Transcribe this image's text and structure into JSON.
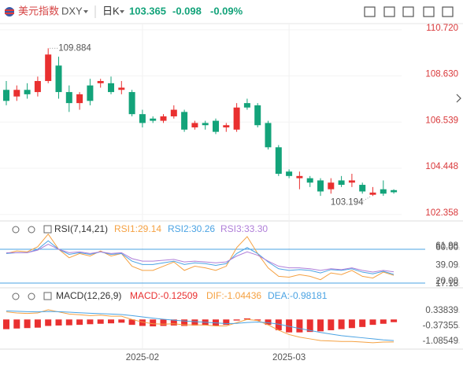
{
  "header": {
    "name": "美元指数",
    "symbol": "DXY",
    "period": "日K",
    "change": "-0.098",
    "change_pct": "-0.09%"
  },
  "chart_data": [
    {
      "type": "candlestick",
      "categories": [
        null,
        null,
        null,
        null,
        null,
        null,
        null,
        null,
        null,
        null,
        null,
        null,
        null,
        "2025-02",
        null,
        null,
        null,
        null,
        null,
        null,
        null,
        null,
        null,
        null,
        null,
        null,
        null,
        "2025-03",
        null,
        null,
        null,
        null,
        null,
        null,
        null,
        null,
        null,
        null
      ],
      "open": [
        108.0,
        107.7,
        108.0,
        107.9,
        108.4,
        109.1,
        107.9,
        107.4,
        108.2,
        108.3,
        108.3,
        108.0,
        107.9,
        106.9,
        106.7,
        106.6,
        106.8,
        107.0,
        106.3,
        106.5,
        106.6,
        106.3,
        106.2,
        107.4,
        107.3,
        106.5,
        105.4,
        104.3,
        104.0,
        104.0,
        103.9,
        103.5,
        103.9,
        103.8,
        103.7,
        103.25,
        103.5,
        103.46
      ],
      "high": [
        108.4,
        108.2,
        108.3,
        108.6,
        109.884,
        109.5,
        108.2,
        107.9,
        108.5,
        108.5,
        108.6,
        108.4,
        108.0,
        107.1,
        106.8,
        106.9,
        107.3,
        107.1,
        106.6,
        106.6,
        106.7,
        106.5,
        107.4,
        107.6,
        107.4,
        106.6,
        105.5,
        104.4,
        104.3,
        104.1,
        104.0,
        104.0,
        104.1,
        104.2,
        103.8,
        103.6,
        103.9,
        103.5
      ],
      "low": [
        107.3,
        107.5,
        107.6,
        107.7,
        108.3,
        107.6,
        107.0,
        107.1,
        107.3,
        108.1,
        107.8,
        107.8,
        106.8,
        106.3,
        106.5,
        106.5,
        106.7,
        106.1,
        106.2,
        106.2,
        106.0,
        106.1,
        106.1,
        107.1,
        106.3,
        105.3,
        104.1,
        104.0,
        103.5,
        103.6,
        103.2,
        103.3,
        103.6,
        103.6,
        103.3,
        103.194,
        103.2,
        103.3
      ],
      "close": [
        107.5,
        108.0,
        107.8,
        108.4,
        109.6,
        107.9,
        107.4,
        107.8,
        107.5,
        108.4,
        107.9,
        108.1,
        106.9,
        106.5,
        106.6,
        106.8,
        107.1,
        106.2,
        106.5,
        106.4,
        106.1,
        106.4,
        107.2,
        107.2,
        106.4,
        105.4,
        104.2,
        104.1,
        104.1,
        103.8,
        103.4,
        103.8,
        103.7,
        103.9,
        103.4,
        103.35,
        103.3,
        103.365
      ],
      "up_color": "#e93030",
      "down_color": "#13a37a",
      "ylim": [
        102.1,
        111.0
      ],
      "yticks": [
        {
          "value": 110.72,
          "label": "110.720"
        },
        {
          "value": 108.63,
          "label": "108.630"
        },
        106.539,
        104.448,
        102.358
      ],
      "grid": true
    },
    {
      "type": "line",
      "title": "RSI(7,14,21)",
      "series": [
        {
          "name": "RSI1:29.14",
          "color": "#f5a142",
          "values": [
            55,
            58,
            57,
            63,
            78,
            60,
            50,
            55,
            52,
            58,
            52,
            55,
            40,
            35,
            35,
            40,
            45,
            35,
            40,
            38,
            35,
            40,
            62,
            75,
            55,
            38,
            28,
            27,
            30,
            28,
            24,
            32,
            30,
            35,
            28,
            26,
            33,
            29.14
          ]
        },
        {
          "name": "RSI2:30.26",
          "color": "#4ba3e3",
          "values": [
            55,
            56,
            56,
            60,
            70,
            60,
            54,
            56,
            54,
            57,
            54,
            55,
            46,
            42,
            42,
            44,
            46,
            42,
            44,
            43,
            41,
            43,
            55,
            62,
            55,
            45,
            37,
            35,
            36,
            35,
            32,
            36,
            35,
            37,
            33,
            31,
            34,
            30.26
          ]
        },
        {
          "name": "RSI3:33.30",
          "color": "#b07fd9",
          "values": [
            56,
            56,
            56,
            59,
            66,
            60,
            56,
            57,
            55,
            57,
            55,
            56,
            49,
            46,
            46,
            47,
            48,
            45,
            46,
            45,
            44,
            45,
            52,
            57,
            53,
            46,
            40,
            38,
            38,
            37,
            35,
            37,
            36,
            38,
            35,
            33,
            35,
            33.3
          ]
        }
      ],
      "ylim": [
        16.3,
        89.8
      ],
      "yticks": [
        61.98,
        {
          "value": 60,
          "label": "60.00"
        },
        39.09,
        17.18,
        {
          "value": 20,
          "label": "20.00"
        }
      ],
      "hlines": [
        60,
        20
      ],
      "hline_color": "#4ba3e3"
    },
    {
      "type": "combo",
      "title": "MACD(12,26,9)",
      "series": [
        {
          "name": "MACD:-0.12509",
          "kind": "bar",
          "color": "#e93030",
          "values": [
            -0.45,
            -0.42,
            -0.4,
            -0.38,
            -0.3,
            -0.28,
            -0.27,
            -0.25,
            -0.22,
            -0.2,
            -0.18,
            -0.15,
            -0.25,
            -0.3,
            -0.32,
            -0.3,
            -0.28,
            -0.3,
            -0.28,
            -0.27,
            -0.28,
            -0.25,
            -0.05,
            0.05,
            -0.05,
            -0.25,
            -0.5,
            -0.6,
            -0.6,
            -0.58,
            -0.55,
            -0.5,
            -0.45,
            -0.4,
            -0.35,
            -0.25,
            -0.2,
            -0.12509
          ]
        },
        {
          "name": "DIF:-1.04436",
          "kind": "line",
          "color": "#f5a142",
          "values": [
            0.35,
            0.3,
            0.28,
            0.3,
            0.45,
            0.35,
            0.25,
            0.22,
            0.18,
            0.2,
            0.15,
            0.15,
            0.0,
            -0.12,
            -0.2,
            -0.22,
            -0.2,
            -0.25,
            -0.25,
            -0.26,
            -0.3,
            -0.3,
            -0.15,
            0.0,
            -0.05,
            -0.25,
            -0.5,
            -0.7,
            -0.82,
            -0.9,
            -0.98,
            -1.0,
            -1.02,
            -1.02,
            -1.05,
            -1.08,
            -1.05,
            -1.04436
          ]
        },
        {
          "name": "DEA:-0.98181",
          "kind": "line",
          "color": "#4ba3e3",
          "values": [
            0.4,
            0.38,
            0.36,
            0.35,
            0.37,
            0.36,
            0.34,
            0.31,
            0.29,
            0.27,
            0.25,
            0.23,
            0.18,
            0.12,
            0.06,
            0.01,
            -0.03,
            -0.07,
            -0.1,
            -0.13,
            -0.16,
            -0.19,
            -0.18,
            -0.14,
            -0.12,
            -0.15,
            -0.22,
            -0.32,
            -0.42,
            -0.51,
            -0.6,
            -0.68,
            -0.75,
            -0.8,
            -0.85,
            -0.9,
            -0.95,
            -0.98181
          ]
        }
      ],
      "ylim": [
        -1.304,
        1.324
      ],
      "yticks": [
        0.33839,
        -0.37355,
        -1.08549
      ]
    }
  ]
}
